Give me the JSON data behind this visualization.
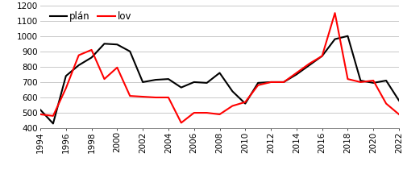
{
  "years": [
    1994,
    1995,
    1996,
    1997,
    1998,
    1999,
    2000,
    2001,
    2002,
    2003,
    2004,
    2005,
    2006,
    2007,
    2008,
    2009,
    2010,
    2011,
    2012,
    2013,
    2014,
    2015,
    2016,
    2017,
    2018,
    2019,
    2020,
    2021,
    2022
  ],
  "plan": [
    520,
    430,
    740,
    810,
    860,
    950,
    945,
    900,
    700,
    715,
    720,
    665,
    700,
    695,
    760,
    640,
    560,
    695,
    700,
    700,
    750,
    810,
    870,
    980,
    1000,
    710,
    695,
    710,
    580
  ],
  "lov": [
    490,
    480,
    660,
    875,
    910,
    720,
    795,
    610,
    605,
    600,
    600,
    435,
    500,
    500,
    490,
    545,
    570,
    680,
    700,
    700,
    760,
    820,
    870,
    1150,
    720,
    700,
    710,
    560,
    490
  ],
  "plan_color": "#000000",
  "lov_color": "#ff0000",
  "ylim": [
    400,
    1200
  ],
  "yticks": [
    400,
    500,
    600,
    700,
    800,
    900,
    1000,
    1100,
    1200
  ],
  "xtick_years": [
    1994,
    1996,
    1998,
    2000,
    2002,
    2004,
    2006,
    2008,
    2010,
    2012,
    2014,
    2016,
    2018,
    2020,
    2022
  ],
  "xtick_labels": [
    "1994",
    "1996",
    "1998",
    "2000",
    "2002",
    "2004",
    "2006",
    "2008",
    "2010",
    "2012",
    "2014",
    "2016",
    "2018",
    "2020",
    "2022"
  ],
  "legend_plan": "plán",
  "legend_lov": "lov",
  "line_width": 1.5,
  "background_color": "#ffffff",
  "grid_color": "#c8c8c8",
  "tick_fontsize": 7.5,
  "legend_fontsize": 8.5
}
